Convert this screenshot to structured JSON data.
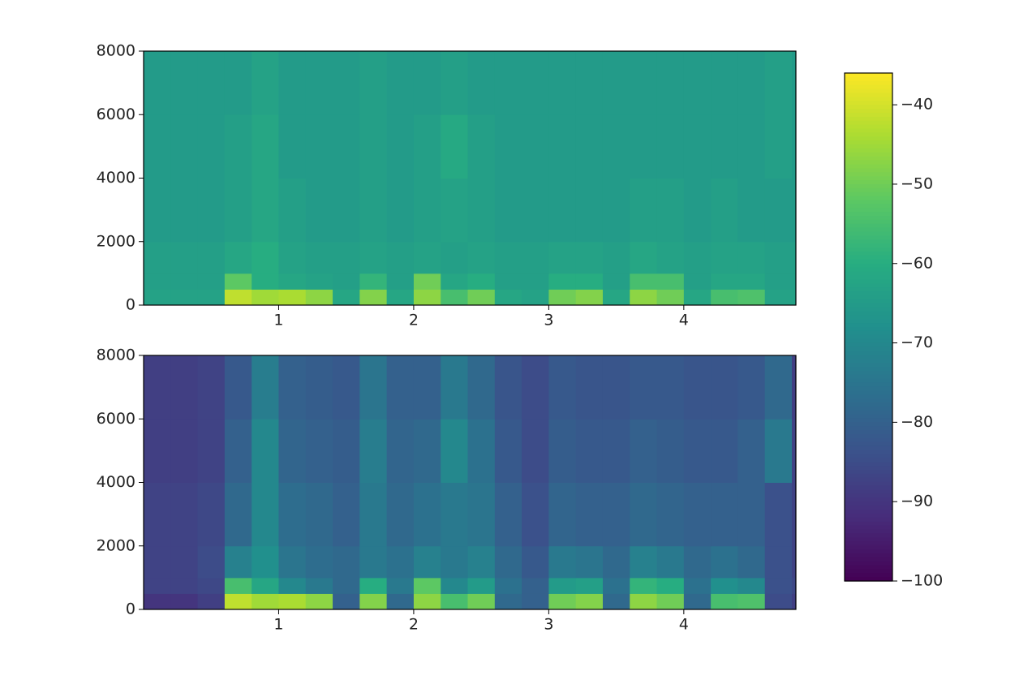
{
  "chart_data": {
    "type": "heatmap",
    "colormap": "viridis",
    "colorbar": {
      "clim": [
        -100,
        -36
      ],
      "ticks": [
        {
          "value": -40,
          "label": "−40"
        },
        {
          "value": -50,
          "label": "−50"
        },
        {
          "value": -60,
          "label": "−60"
        },
        {
          "value": -70,
          "label": "−70"
        },
        {
          "value": -80,
          "label": "−80"
        },
        {
          "value": -90,
          "label": "−90"
        },
        {
          "value": -100,
          "label": "−100"
        }
      ]
    },
    "panels": [
      {
        "xlim": [
          0,
          4.83
        ],
        "ylim": [
          0,
          8000
        ],
        "xticks": [
          1,
          2,
          3,
          4
        ],
        "yticks": [
          0,
          2000,
          4000,
          6000,
          8000
        ],
        "x_edges": [
          0,
          0.2,
          0.4,
          0.6,
          0.8,
          1.0,
          1.2,
          1.4,
          1.6,
          1.8,
          2.0,
          2.2,
          2.4,
          2.6,
          2.8,
          3.0,
          3.2,
          3.4,
          3.6,
          3.8,
          4.0,
          4.2,
          4.4,
          4.6,
          4.8,
          4.83
        ],
        "y_edges": [
          0,
          500,
          1000,
          2000,
          4000,
          6000,
          8000
        ],
        "z": [
          [
            -63,
            -63,
            -63,
            -42,
            -45,
            -44,
            -47,
            -62,
            -48,
            -62,
            -47,
            -55,
            -50,
            -62,
            -63,
            -50,
            -48,
            -62,
            -47,
            -50,
            -62,
            -55,
            -54,
            -63,
            -63
          ],
          [
            -64,
            -64,
            -64,
            -52,
            -60,
            -62,
            -63,
            -64,
            -58,
            -64,
            -50,
            -62,
            -60,
            -64,
            -64,
            -60,
            -60,
            -64,
            -55,
            -55,
            -64,
            -62,
            -62,
            -64,
            -64
          ],
          [
            -64,
            -64,
            -64,
            -62,
            -60,
            -63,
            -64,
            -64,
            -63,
            -64,
            -63,
            -64,
            -63,
            -64,
            -64,
            -63,
            -63,
            -64,
            -62,
            -63,
            -64,
            -63,
            -63,
            -64,
            -64
          ],
          [
            -65,
            -65,
            -65,
            -64,
            -62,
            -64,
            -65,
            -65,
            -64,
            -65,
            -64,
            -63,
            -64,
            -65,
            -65,
            -65,
            -65,
            -65,
            -64,
            -64,
            -65,
            -64,
            -65,
            -65,
            -65
          ],
          [
            -65,
            -65,
            -65,
            -64,
            -62,
            -65,
            -65,
            -65,
            -64,
            -65,
            -64,
            -61,
            -64,
            -65,
            -65,
            -65,
            -65,
            -65,
            -65,
            -65,
            -65,
            -65,
            -65,
            -64,
            -65
          ],
          [
            -65,
            -65,
            -65,
            -65,
            -63,
            -65,
            -65,
            -65,
            -64,
            -65,
            -65,
            -64,
            -65,
            -65,
            -65,
            -65,
            -65,
            -65,
            -65,
            -65,
            -65,
            -65,
            -65,
            -64,
            -65
          ]
        ]
      },
      {
        "xlim": [
          0,
          4.83
        ],
        "ylim": [
          0,
          8000
        ],
        "xticks": [
          1,
          2,
          3,
          4
        ],
        "yticks": [
          0,
          2000,
          4000,
          6000,
          8000
        ],
        "x_edges": [
          0,
          0.2,
          0.4,
          0.6,
          0.8,
          1.0,
          1.2,
          1.4,
          1.6,
          1.8,
          2.0,
          2.2,
          2.4,
          2.6,
          2.8,
          3.0,
          3.2,
          3.4,
          3.6,
          3.8,
          4.0,
          4.2,
          4.4,
          4.6,
          4.8,
          4.83
        ],
        "y_edges": [
          0,
          500,
          1000,
          2000,
          4000,
          6000,
          8000
        ],
        "z": [
          [
            -90,
            -90,
            -88,
            -42,
            -45,
            -44,
            -47,
            -80,
            -48,
            -78,
            -47,
            -55,
            -50,
            -78,
            -80,
            -50,
            -48,
            -78,
            -47,
            -50,
            -78,
            -55,
            -54,
            -85,
            -88
          ],
          [
            -87,
            -87,
            -86,
            -55,
            -62,
            -70,
            -74,
            -78,
            -60,
            -74,
            -52,
            -70,
            -65,
            -76,
            -80,
            -65,
            -64,
            -76,
            -58,
            -60,
            -76,
            -68,
            -70,
            -84,
            -86
          ],
          [
            -87,
            -87,
            -85,
            -72,
            -68,
            -75,
            -77,
            -78,
            -74,
            -76,
            -72,
            -74,
            -72,
            -78,
            -82,
            -74,
            -75,
            -78,
            -72,
            -74,
            -78,
            -76,
            -78,
            -84,
            -87
          ],
          [
            -87,
            -87,
            -86,
            -78,
            -70,
            -77,
            -78,
            -80,
            -74,
            -78,
            -76,
            -74,
            -75,
            -80,
            -84,
            -79,
            -80,
            -80,
            -78,
            -79,
            -80,
            -80,
            -80,
            -84,
            -87
          ],
          [
            -88,
            -88,
            -87,
            -80,
            -70,
            -79,
            -80,
            -81,
            -73,
            -79,
            -78,
            -70,
            -76,
            -82,
            -85,
            -81,
            -82,
            -82,
            -80,
            -81,
            -82,
            -82,
            -80,
            -74,
            -87
          ],
          [
            -88,
            -88,
            -87,
            -82,
            -73,
            -80,
            -81,
            -82,
            -75,
            -80,
            -80,
            -74,
            -78,
            -83,
            -85,
            -82,
            -83,
            -83,
            -82,
            -82,
            -83,
            -83,
            -82,
            -78,
            -88
          ]
        ]
      }
    ]
  }
}
